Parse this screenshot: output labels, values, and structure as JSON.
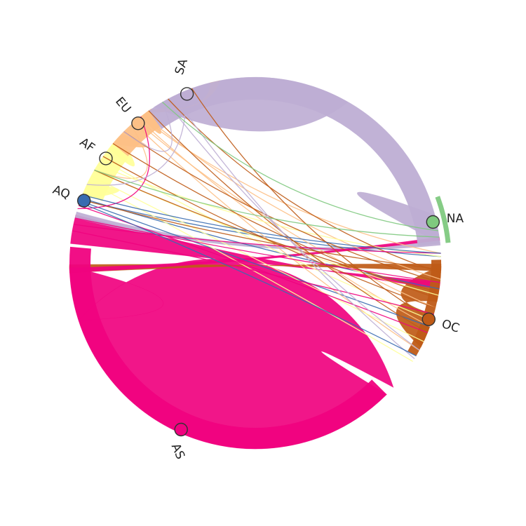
{
  "diagram": {
    "type": "chord",
    "nodes": [
      {
        "id": "SA",
        "label": "SA",
        "color": "#beaed4"
      },
      {
        "id": "NA",
        "label": "NA",
        "color": "#7fc97f"
      },
      {
        "id": "OC",
        "label": "OC",
        "color": "#bf5b17"
      },
      {
        "id": "AS",
        "label": "AS",
        "color": "#f0027f"
      },
      {
        "id": "AQ",
        "label": "AQ",
        "color": "#386cb0"
      },
      {
        "id": "AF",
        "label": "AF",
        "color": "#ffff99"
      },
      {
        "id": "EU",
        "label": "EU",
        "color": "#fdc086"
      }
    ]
  }
}
